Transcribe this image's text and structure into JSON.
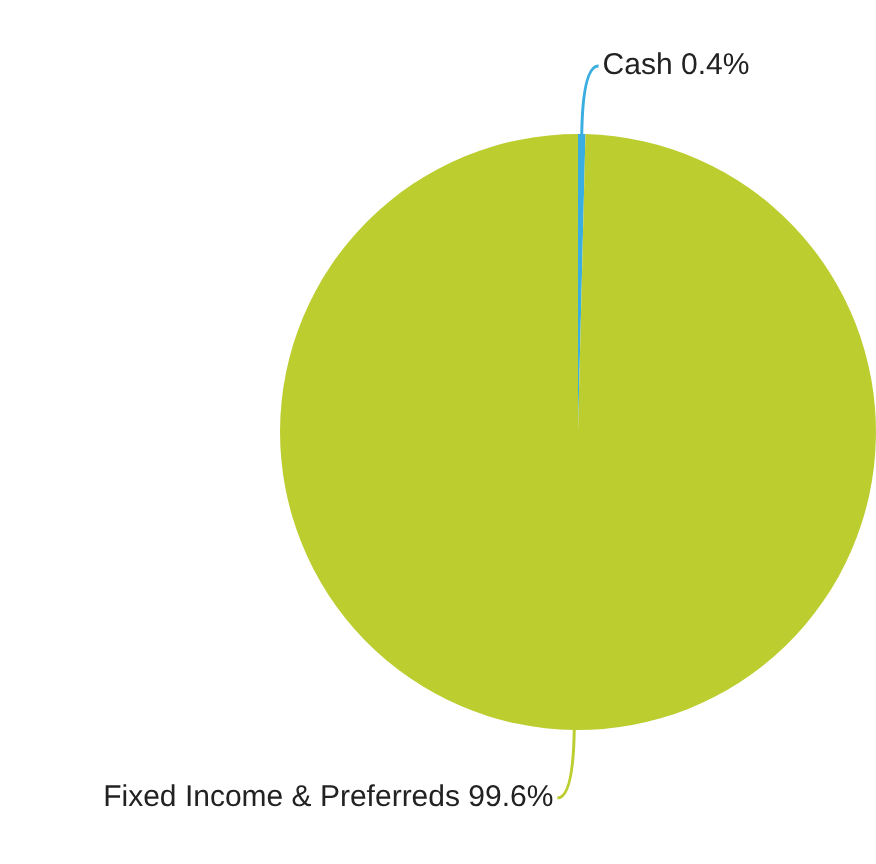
{
  "chart_data": {
    "type": "pie",
    "categories": [
      "Cash",
      "Fixed Income & Preferreds"
    ],
    "values": [
      0.4,
      99.6
    ],
    "colors": [
      "#3aaee0",
      "#bccd30"
    ],
    "value_labels": [
      "0.4%",
      "99.6%"
    ],
    "legend": false
  }
}
